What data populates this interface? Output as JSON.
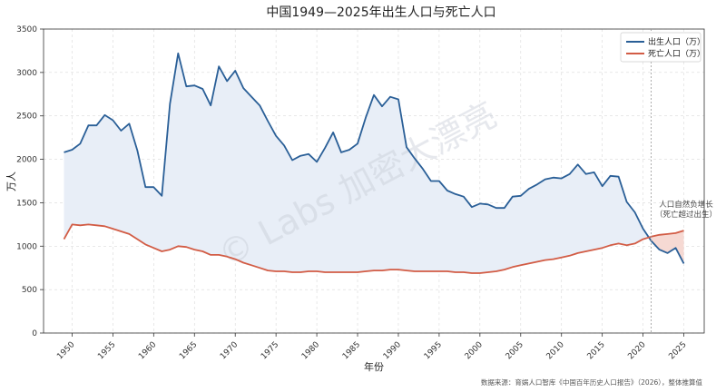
{
  "chart_data": {
    "type": "line",
    "title": "中国1949—2025年出生人口与死亡人口",
    "xlabel": "年份",
    "ylabel": "万人",
    "xlim": [
      1946.5,
      2027.5
    ],
    "ylim": [
      0,
      3500
    ],
    "xticks": [
      1950,
      1955,
      1960,
      1965,
      1970,
      1975,
      1980,
      1985,
      1990,
      1995,
      2000,
      2005,
      2010,
      2015,
      2020,
      2025
    ],
    "yticks": [
      0,
      500,
      1000,
      1500,
      2000,
      2500,
      3000,
      3500
    ],
    "grid": true,
    "legend_position": "top-right",
    "x": [
      1949,
      1950,
      1951,
      1952,
      1953,
      1954,
      1955,
      1956,
      1957,
      1958,
      1959,
      1960,
      1961,
      1962,
      1963,
      1964,
      1965,
      1966,
      1967,
      1968,
      1969,
      1970,
      1971,
      1972,
      1973,
      1974,
      1975,
      1976,
      1977,
      1978,
      1979,
      1980,
      1981,
      1982,
      1983,
      1984,
      1985,
      1986,
      1987,
      1988,
      1989,
      1990,
      1991,
      1992,
      1993,
      1994,
      1995,
      1996,
      1997,
      1998,
      1999,
      2000,
      2001,
      2002,
      2003,
      2004,
      2005,
      2006,
      2007,
      2008,
      2009,
      2010,
      2011,
      2012,
      2013,
      2014,
      2015,
      2016,
      2017,
      2018,
      2019,
      2020,
      2021,
      2022,
      2023,
      2024,
      2025
    ],
    "series": [
      {
        "name": "出生人口（万）",
        "color": "#2a5f97",
        "values": [
          2080,
          2110,
          2180,
          2390,
          2390,
          2510,
          2450,
          2330,
          2410,
          2100,
          1680,
          1680,
          1580,
          2640,
          3220,
          2840,
          2850,
          2810,
          2620,
          3070,
          2900,
          3020,
          2820,
          2720,
          2620,
          2440,
          2270,
          2160,
          1990,
          2040,
          2060,
          1970,
          2130,
          2310,
          2080,
          2110,
          2180,
          2480,
          2740,
          2610,
          2720,
          2690,
          2140,
          2010,
          1890,
          1750,
          1750,
          1640,
          1600,
          1570,
          1450,
          1490,
          1480,
          1440,
          1440,
          1570,
          1580,
          1660,
          1710,
          1770,
          1790,
          1780,
          1830,
          1940,
          1830,
          1850,
          1690,
          1810,
          1800,
          1510,
          1390,
          1200,
          1060,
          960,
          920,
          980,
          800
        ]
      },
      {
        "name": "死亡人口（万）",
        "color": "#d25c45",
        "values": [
          1080,
          1250,
          1240,
          1250,
          1240,
          1230,
          1200,
          1170,
          1140,
          1080,
          1020,
          980,
          940,
          960,
          1000,
          990,
          960,
          940,
          900,
          900,
          880,
          850,
          810,
          780,
          750,
          720,
          710,
          710,
          700,
          700,
          710,
          710,
          700,
          700,
          700,
          700,
          700,
          710,
          720,
          720,
          730,
          730,
          720,
          710,
          710,
          710,
          710,
          710,
          700,
          700,
          690,
          690,
          700,
          710,
          730,
          760,
          780,
          800,
          820,
          840,
          850,
          870,
          890,
          920,
          940,
          960,
          980,
          1010,
          1030,
          1010,
          1030,
          1080,
          1110,
          1130,
          1140,
          1150,
          1180
        ]
      }
    ],
    "annotation": "人口自然负增长\n（死亡超过出生）",
    "annotation_line_x": 2021,
    "source_note": "数据来源：育娲人口智库《中国百年历史人口报告》（2026），整体推算值",
    "watermark": "© Labs 加密大漂亮"
  }
}
